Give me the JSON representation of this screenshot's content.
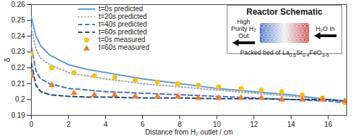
{
  "chart_data": {
    "type": "line",
    "x_label": "Distance from H₂ outlet / cm",
    "y_label": "δ",
    "xlim": [
      0,
      17
    ],
    "xticks": [
      0,
      2,
      4,
      6,
      8,
      10,
      12,
      14,
      16
    ],
    "ylim": [
      0.19,
      0.26
    ],
    "yticks": [
      0.19,
      0.2,
      0.21,
      0.22,
      0.23,
      0.24,
      0.25,
      0.26
    ],
    "legend": "top-left",
    "series": [
      {
        "name": "t=0s predicted",
        "type": "line",
        "line_style": "solid",
        "color": "#5b9bd5",
        "x": [
          0,
          0.25,
          0.5,
          1,
          2,
          3,
          4,
          6,
          8,
          10,
          12,
          14,
          16,
          17
        ],
        "values": [
          0.252,
          0.24,
          0.234,
          0.228,
          0.222,
          0.219,
          0.217,
          0.213,
          0.21,
          0.207,
          0.205,
          0.203,
          0.2,
          0.199
        ]
      },
      {
        "name": "t=20s predicted",
        "type": "line",
        "line_style": "dotted",
        "color": "#a5a5a5",
        "x": [
          0,
          0.25,
          0.5,
          1,
          2,
          3,
          4,
          6,
          8,
          10,
          12,
          14,
          16,
          17
        ],
        "values": [
          0.245,
          0.232,
          0.226,
          0.222,
          0.217,
          0.215,
          0.213,
          0.21,
          0.208,
          0.206,
          0.204,
          0.202,
          0.2,
          0.199
        ]
      },
      {
        "name": "t=40s predicted",
        "type": "line",
        "line_style": "dashed",
        "color": "#4472c4",
        "x": [
          0,
          0.25,
          0.5,
          1,
          2,
          3,
          4,
          6,
          8,
          10,
          12,
          14,
          16,
          17
        ],
        "values": [
          0.233,
          0.218,
          0.213,
          0.21,
          0.207,
          0.206,
          0.205,
          0.204,
          0.203,
          0.202,
          0.201,
          0.2,
          0.199,
          0.198
        ]
      },
      {
        "name": "t=60s predicted",
        "type": "line",
        "line_style": "dashed",
        "color": "#264478",
        "x": [
          0,
          0.25,
          0.5,
          1,
          2,
          3,
          4,
          6,
          8,
          10,
          12,
          14,
          16,
          17
        ],
        "values": [
          0.223,
          0.209,
          0.205,
          0.203,
          0.202,
          0.2015,
          0.2015,
          0.201,
          0.201,
          0.2005,
          0.2005,
          0.2,
          0.2,
          0.199
        ]
      },
      {
        "name": "t=0s measured",
        "type": "scatter",
        "marker": "circle",
        "color": "#ffc000",
        "x": [
          0,
          1.1,
          2.3,
          3.4,
          4.5,
          5.6,
          6.8,
          7.9,
          9.0,
          10.1,
          11.3,
          12.4,
          13.5,
          14.6,
          15.7,
          16.9
        ],
        "values": [
          0.229,
          0.22,
          0.217,
          0.215,
          0.214,
          0.212,
          0.211,
          0.21,
          0.209,
          0.208,
          0.207,
          0.206,
          0.205,
          0.203,
          0.201,
          0.198
        ]
      },
      {
        "name": "t=60s measured",
        "type": "scatter",
        "marker": "triangle",
        "color": "#ed7d31",
        "x": [
          0,
          1.1,
          2.3,
          3.4,
          4.5,
          5.6,
          6.8,
          7.9,
          9.0,
          10.1,
          11.3,
          12.4,
          13.5,
          14.6,
          15.7,
          16.9
        ],
        "values": [
          0.215,
          0.209,
          0.204,
          0.203,
          0.203,
          0.202,
          0.202,
          0.202,
          0.201,
          0.201,
          0.201,
          0.201,
          0.2,
          0.2,
          0.2,
          0.199
        ]
      }
    ],
    "inset": {
      "title": "Reactor Schematic",
      "left_label": "High Purity H₂ Out",
      "right_label": "H₂O In",
      "caption": "Packed bed of La0.6Sr0.4FeO3-δ"
    }
  }
}
